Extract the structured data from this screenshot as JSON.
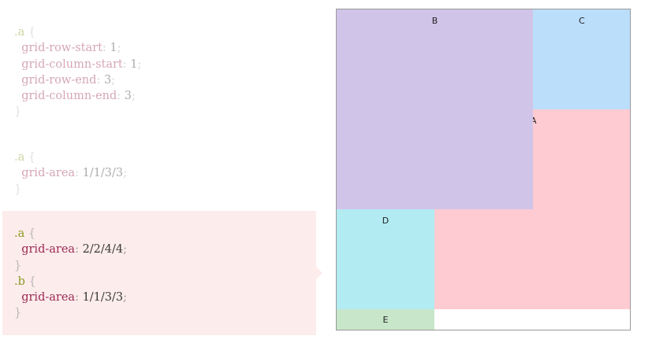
{
  "code": {
    "block1": {
      "selector": ".a",
      "open_brace": "{",
      "close_brace": "}",
      "props": [
        {
          "name": "grid-row-start",
          "value": "1"
        },
        {
          "name": "grid-column-start",
          "value": "1"
        },
        {
          "name": "grid-row-end",
          "value": "3"
        },
        {
          "name": "grid-column-end",
          "value": "3"
        }
      ]
    },
    "block2": {
      "selector": ".a",
      "open_brace": "{",
      "close_brace": "}",
      "prop": {
        "name": "grid-area",
        "value": "1/1/3/3"
      }
    },
    "block3": {
      "rule_a": {
        "selector": ".a",
        "open_brace": "{",
        "close_brace": "}",
        "prop": {
          "name": "grid-area",
          "value": "2/2/4/4"
        }
      },
      "rule_b": {
        "selector": ".b",
        "open_brace": "{",
        "close_brace": "}",
        "prop": {
          "name": "grid-area",
          "value": "1/1/3/3"
        }
      }
    }
  },
  "grid": {
    "cells": {
      "a": {
        "label": "A",
        "color": "#ffcbd2"
      },
      "b": {
        "label": "B",
        "color": "#d1c4e9"
      },
      "c": {
        "label": "C",
        "color": "#bbdefb"
      },
      "d": {
        "label": "D",
        "color": "#b2ebf2"
      },
      "e": {
        "label": "E",
        "color": "#c8e6c9"
      }
    }
  }
}
